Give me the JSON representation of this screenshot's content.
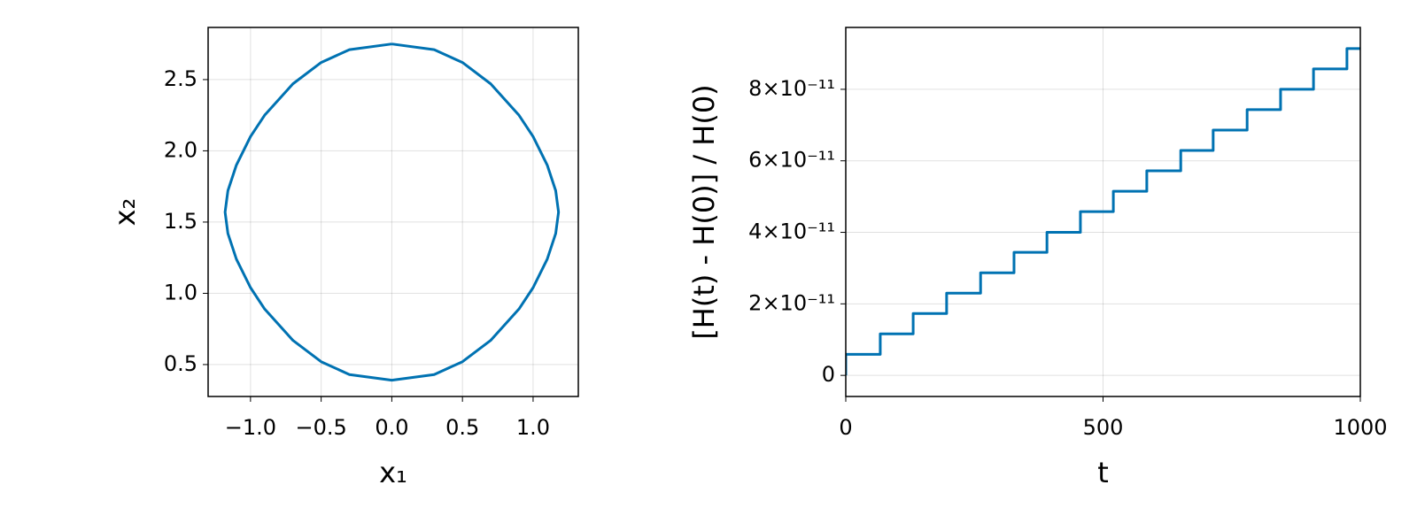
{
  "chart_data": [
    {
      "type": "line",
      "xlabel": "x₁",
      "ylabel": "x₂",
      "color": "#0072b2",
      "grid": true,
      "x": [
        0,
        0.3,
        0.5,
        0.7,
        0.9,
        1.0,
        1.1,
        1.16,
        1.18,
        1.16,
        1.1,
        1.0,
        0.9,
        0.7,
        0.5,
        0.3,
        0,
        -0.3,
        -0.5,
        -0.7,
        -0.9,
        -1.0,
        -1.1,
        -1.16,
        -1.18,
        -1.16,
        -1.1,
        -1.0,
        -0.9,
        -0.7,
        -0.5,
        -0.3,
        0
      ],
      "y": [
        2.75,
        2.71,
        2.62,
        2.47,
        2.25,
        2.1,
        1.9,
        1.72,
        1.57,
        1.42,
        1.24,
        1.04,
        0.89,
        0.67,
        0.52,
        0.43,
        0.39,
        0.43,
        0.52,
        0.67,
        0.89,
        1.04,
        1.24,
        1.42,
        1.57,
        1.72,
        1.9,
        2.1,
        2.25,
        2.47,
        2.62,
        2.71,
        2.75
      ],
      "xlim": [
        -1.3,
        1.32
      ],
      "ylim": [
        0.276,
        2.866
      ],
      "xticks": [
        {
          "value": -1.0,
          "label": "−1.0"
        },
        {
          "value": -0.5,
          "label": "−0.5"
        },
        {
          "value": 0,
          "label": "0.0"
        },
        0.5,
        {
          "value": 1.0,
          "label": "1.0"
        }
      ],
      "yticks": [
        0.5,
        {
          "value": 1.0,
          "label": "1.0"
        },
        1.5,
        {
          "value": 2.0,
          "label": "2.0"
        },
        2.5
      ]
    },
    {
      "type": "line",
      "xlabel": "t",
      "ylabel": "[H(t) - H(0)] / H(0)",
      "color": "#0072b2",
      "grid": true,
      "x": [
        0,
        0,
        67,
        67,
        131,
        131,
        196,
        196,
        262,
        262,
        327,
        327,
        391,
        391,
        456,
        456,
        520,
        520,
        585,
        585,
        651,
        651,
        714,
        714,
        780,
        780,
        845,
        845,
        909,
        909,
        974,
        974,
        1000
      ],
      "y": [
        0,
        5.9e-12,
        5.9e-12,
        1.16e-11,
        1.16e-11,
        1.73e-11,
        1.73e-11,
        2.3e-11,
        2.3e-11,
        2.87e-11,
        2.87e-11,
        3.44e-11,
        3.44e-11,
        4e-11,
        4e-11,
        4.58e-11,
        4.58e-11,
        5.15e-11,
        5.15e-11,
        5.72e-11,
        5.72e-11,
        6.29e-11,
        6.29e-11,
        6.86e-11,
        6.86e-11,
        7.43e-11,
        7.43e-11,
        8e-11,
        8e-11,
        8.57e-11,
        8.57e-11,
        9.14e-11,
        9.14e-11
      ],
      "xlim": [
        0,
        1000
      ],
      "ylim": [
        -5.9e-12,
        9.73e-11
      ],
      "xticks": [
        0,
        500,
        1000
      ],
      "yticks": [
        0,
        {
          "value": 2e-11,
          "label": "2×10⁻¹¹"
        },
        {
          "value": 4e-11,
          "label": "4×10⁻¹¹"
        },
        {
          "value": 6e-11,
          "label": "6×10⁻¹¹"
        },
        {
          "value": 8e-11,
          "label": "8×10⁻¹¹"
        }
      ]
    }
  ]
}
